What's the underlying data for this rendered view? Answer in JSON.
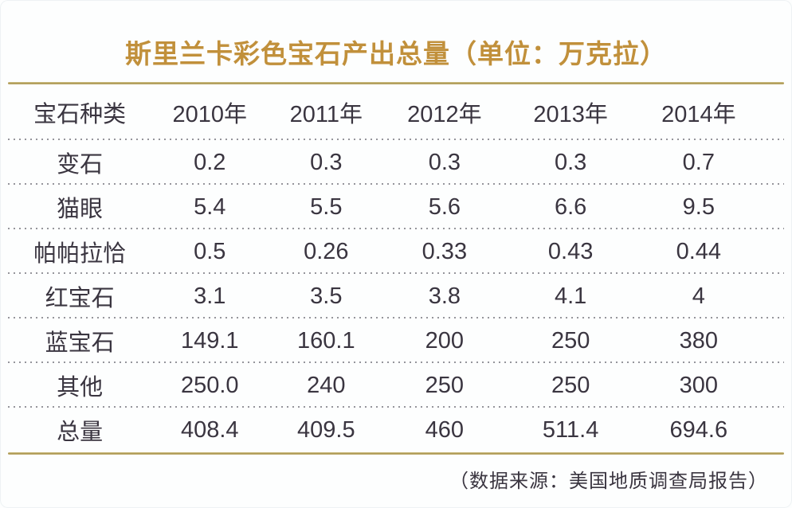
{
  "title": "斯里兰卡彩色宝石产出总量（单位：万克拉）",
  "table": {
    "columns": [
      "宝石种类",
      "2010年",
      "2011年",
      "2012年",
      "2013年",
      "2014年"
    ],
    "rows": [
      {
        "label": "变石",
        "values": [
          "0.2",
          "0.3",
          "0.3",
          "0.3",
          "0.7"
        ]
      },
      {
        "label": "猫眼",
        "values": [
          "5.4",
          "5.5",
          "5.6",
          "6.6",
          "9.5"
        ]
      },
      {
        "label": "帕帕拉恰",
        "values": [
          "0.5",
          "0.26",
          "0.33",
          "0.43",
          "0.44"
        ]
      },
      {
        "label": "红宝石",
        "values": [
          "3.1",
          "3.5",
          "3.8",
          "4.1",
          "4"
        ]
      },
      {
        "label": "蓝宝石",
        "values": [
          "149.1",
          "160.1",
          "200",
          "250",
          "380"
        ]
      },
      {
        "label": "其他",
        "values": [
          "250.0",
          "240",
          "250",
          "250",
          "300"
        ]
      },
      {
        "label": "总量",
        "values": [
          "408.4",
          "409.5",
          "460",
          "511.4",
          "694.6"
        ]
      }
    ]
  },
  "footer": {
    "source_note": "（数据来源：美国地质调查局报告）"
  },
  "colors": {
    "title_gold": "#c1903b",
    "rule_gold": "#a8934d",
    "text_dark": "#3a3540",
    "dot_gray": "#95959b",
    "background": "#fdfefe"
  },
  "chart_data": {
    "type": "table",
    "title": "斯里兰卡彩色宝石产出总量",
    "unit": "万克拉",
    "categories": [
      "2010年",
      "2011年",
      "2012年",
      "2013年",
      "2014年"
    ],
    "series": [
      {
        "name": "变石",
        "values": [
          0.2,
          0.3,
          0.3,
          0.3,
          0.7
        ]
      },
      {
        "name": "猫眼",
        "values": [
          5.4,
          5.5,
          5.6,
          6.6,
          9.5
        ]
      },
      {
        "name": "帕帕拉恰",
        "values": [
          0.5,
          0.26,
          0.33,
          0.43,
          0.44
        ]
      },
      {
        "name": "红宝石",
        "values": [
          3.1,
          3.5,
          3.8,
          4.1,
          4
        ]
      },
      {
        "name": "蓝宝石",
        "values": [
          149.1,
          160.1,
          200,
          250,
          380
        ]
      },
      {
        "name": "其他",
        "values": [
          250.0,
          240,
          250,
          250,
          300
        ]
      },
      {
        "name": "总量",
        "values": [
          408.4,
          409.5,
          460,
          511.4,
          694.6
        ]
      }
    ],
    "source": "美国地质调查局报告"
  }
}
